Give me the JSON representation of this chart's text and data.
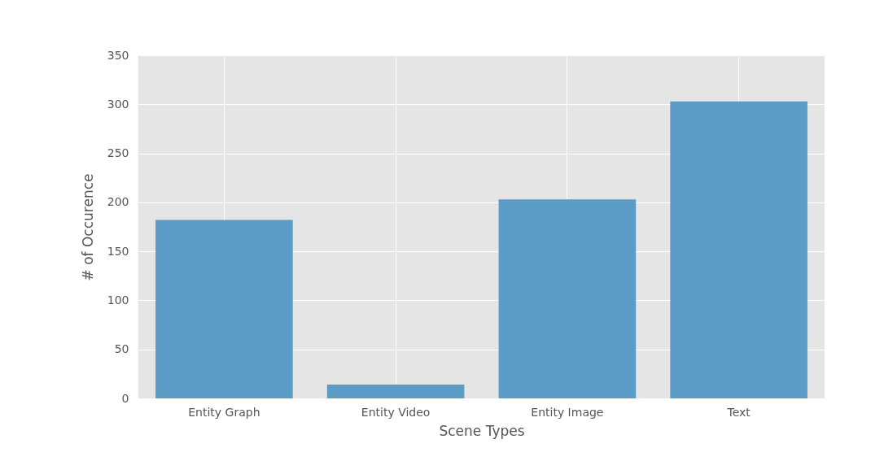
{
  "chart_data": {
    "type": "bar",
    "xlabel": "Scene Types",
    "ylabel": "# of Occurence",
    "categories": [
      "Entity Graph",
      "Entity Video",
      "Entity Image",
      "Text"
    ],
    "values": [
      182,
      14,
      203,
      303
    ],
    "color": "#5b9dc7",
    "ylim": [
      0,
      350
    ],
    "yticks": [
      0,
      50,
      100,
      150,
      200,
      250,
      300,
      350
    ],
    "grid": true
  }
}
